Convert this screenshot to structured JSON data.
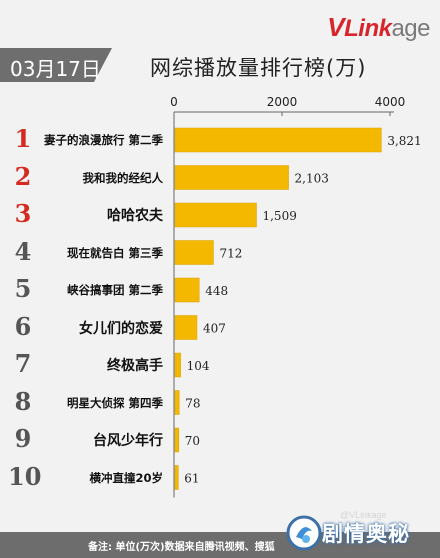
{
  "brand": {
    "v": "V",
    "link": "Link",
    "age": "age"
  },
  "date_badge": "03月17日",
  "title": "网综播放量排行榜(万)",
  "footer_note": "备注: 单位(万次)数据来自腾讯视频、搜狐",
  "watermark": {
    "text": "剧情奥秘",
    "sub": "@VLinkage"
  },
  "colors": {
    "bar": "#f5b800",
    "rank_top": "#d42a20",
    "rank_other": "#555555",
    "badge": "#6e6e6e"
  },
  "chart_data": {
    "type": "bar",
    "orientation": "horizontal",
    "title": "网综播放量排行榜(万)",
    "ranks": [
      "1",
      "2",
      "3",
      "4",
      "5",
      "6",
      "7",
      "8",
      "9",
      "10"
    ],
    "categories": [
      "妻子的浪漫旅行 第二季",
      "我和我的经纪人",
      "哈哈农夫",
      "现在就告白 第三季",
      "峡谷搞事团 第二季",
      "女儿们的恋爱",
      "终极高手",
      "明星大侦探 第四季",
      "台风少年行",
      "横冲直撞20岁"
    ],
    "values": [
      3821,
      2103,
      1509,
      712,
      448,
      407,
      104,
      78,
      70,
      61
    ],
    "value_labels": [
      "3,821",
      "2,103",
      "1,509",
      "712",
      "448",
      "407",
      "104",
      "78",
      "70",
      "61"
    ],
    "xlim": [
      0,
      4000
    ],
    "xticks": [
      "0",
      "2000",
      "4000"
    ],
    "xtick_values": [
      0,
      2000,
      4000
    ]
  }
}
